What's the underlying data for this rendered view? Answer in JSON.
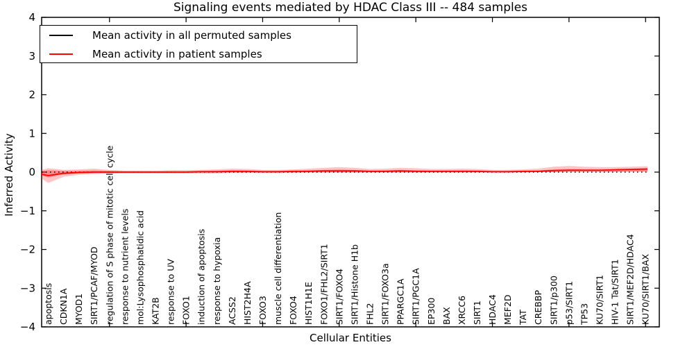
{
  "chart_data": {
    "type": "line",
    "title": "Signaling events mediated by HDAC Class III -- 484 samples",
    "xlabel": "Cellular Entities",
    "ylabel": "Inferred Activity",
    "ylim": [
      -4,
      4
    ],
    "yticks": [
      4,
      3,
      2,
      1,
      0,
      -1,
      -2,
      -3,
      -4
    ],
    "grid": false,
    "legend_position": "upper-left",
    "colors": {
      "permuted_line": "#000000",
      "patient_line": "#ff0000",
      "patient_band": "#ff2a2a",
      "axis": "#000000",
      "background": "#ffffff"
    },
    "categories": [
      "apoptosis",
      "CDKN1A",
      "MYOD1",
      "SIRT1/PCAF/MYOD",
      "regulation of S phase of mitotic cell cycle",
      "response to nutrient levels",
      "mol:Lysophosphatidic acid",
      "KAT2B",
      "response to UV",
      "FOXO1",
      "induction of apoptosis",
      "response to hypoxia",
      "ACSS2",
      "HIST2H4A",
      "FOXO3",
      "muscle cell differentiation",
      "FOXO4",
      "HIST1H1E",
      "FOXO1/FHL2/SIRT1",
      "SIRT1/FOXO4",
      "SIRT1/Histone H1b",
      "FHL2",
      "SIRT1/FOXO3a",
      "PPARGC1A",
      "SIRT1/PGC1A",
      "EP300",
      "BAX",
      "XRCC6",
      "SIRT1",
      "HDAC4",
      "MEF2D",
      "TAT",
      "CREBBP",
      "SIRT1/p300",
      "p53/SIRT1",
      "TP53",
      "KU70/SIRT1",
      "HIV-1 Tat/SIRT1",
      "SIRT1/MEF2D/HDAC4",
      "KU70/SIRT1/BAX"
    ],
    "series": [
      {
        "name": "Mean activity in all permuted samples",
        "color": "#000000",
        "style": "dotted",
        "values": [
          0,
          0,
          0,
          0,
          0,
          0,
          0,
          0,
          0,
          0,
          0,
          0,
          0,
          0,
          0,
          0,
          0,
          0,
          0,
          0,
          0,
          0,
          0,
          0,
          0,
          0,
          0,
          0,
          0,
          0,
          0,
          0,
          0,
          0,
          0,
          0,
          0,
          0,
          0,
          0
        ]
      },
      {
        "name": "Mean activity in patient samples",
        "color": "#ff0000",
        "style": "solid",
        "values": [
          -0.09,
          -0.03,
          -0.01,
          0.0,
          0.0,
          0.0,
          0.0,
          0.0,
          0.0,
          0.0,
          0.01,
          0.01,
          0.02,
          0.02,
          0.01,
          0.01,
          0.02,
          0.02,
          0.03,
          0.03,
          0.03,
          0.02,
          0.02,
          0.03,
          0.02,
          0.02,
          0.02,
          0.02,
          0.02,
          0.01,
          0.01,
          0.02,
          0.02,
          0.04,
          0.05,
          0.05,
          0.05,
          0.06,
          0.07,
          0.08
        ]
      }
    ],
    "patient_band": {
      "color": "#ff2a2a",
      "upper": [
        0.1,
        0.06,
        0.07,
        0.09,
        0.06,
        0.04,
        0.04,
        0.04,
        0.05,
        0.05,
        0.06,
        0.07,
        0.09,
        0.08,
        0.06,
        0.06,
        0.07,
        0.09,
        0.11,
        0.13,
        0.11,
        0.08,
        0.09,
        0.11,
        0.1,
        0.08,
        0.08,
        0.09,
        0.08,
        0.06,
        0.06,
        0.07,
        0.09,
        0.14,
        0.16,
        0.14,
        0.13,
        0.13,
        0.14,
        0.15
      ],
      "lower": [
        -0.28,
        -0.12,
        -0.07,
        -0.05,
        -0.04,
        -0.03,
        -0.03,
        -0.03,
        -0.03,
        -0.03,
        -0.03,
        -0.03,
        -0.02,
        -0.02,
        -0.02,
        -0.02,
        -0.02,
        -0.01,
        -0.01,
        -0.01,
        -0.01,
        -0.01,
        -0.01,
        -0.01,
        -0.01,
        -0.01,
        -0.01,
        -0.01,
        -0.01,
        -0.01,
        -0.01,
        -0.01,
        0.0,
        0.0,
        0.01,
        0.01,
        0.01,
        0.01,
        0.02,
        0.02
      ]
    }
  }
}
